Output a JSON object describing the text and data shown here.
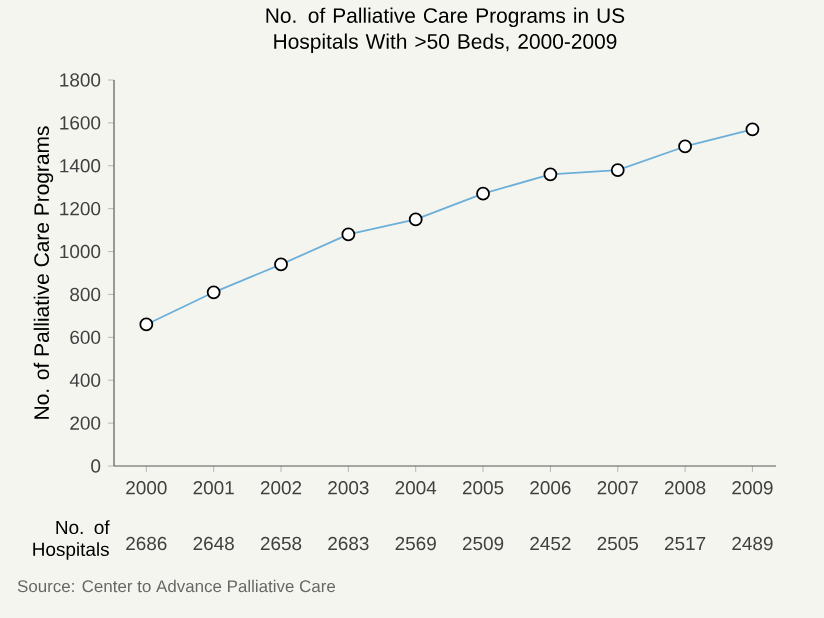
{
  "chart_data": {
    "type": "line",
    "title": "No. of Palliative Care Programs in US Hospitals With >50 Beds, 2000-2009",
    "ylabel": "No. of Palliative Care Programs",
    "categories": [
      "2000",
      "2001",
      "2002",
      "2003",
      "2004",
      "2005",
      "2006",
      "2007",
      "2008",
      "2009"
    ],
    "series": [
      {
        "color": "#6aafd9",
        "values": [
          660,
          810,
          940,
          1080,
          1150,
          1270,
          1360,
          1380,
          1490,
          1570
        ]
      }
    ],
    "ylim": [
      0,
      1800
    ],
    "yticks": [
      0,
      200,
      400,
      600,
      800,
      1000,
      1200,
      1400,
      1600,
      1800
    ],
    "marker": "circle",
    "line_style": "solid",
    "annotations": [
      "No. of Hospitals",
      "2686",
      "2648",
      "2658",
      "2683",
      "2569",
      "2509",
      "2452",
      "2505",
      "2517",
      "2489",
      "Source: Center to Advance Palliative Care"
    ]
  }
}
